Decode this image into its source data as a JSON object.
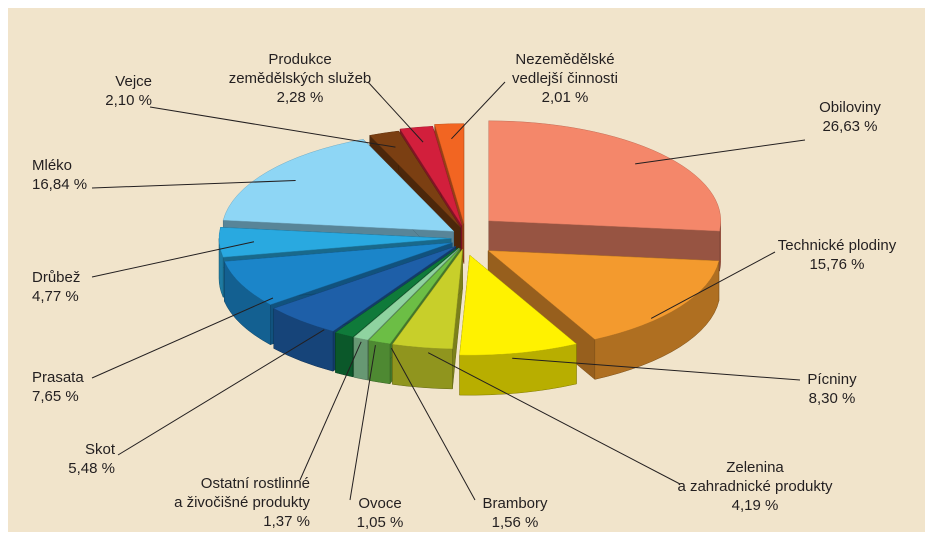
{
  "chart_data": {
    "type": "pie",
    "categories": [
      "Obiloviny",
      "Technické plodiny",
      "Pícniny",
      "Zelenina\na zahradnické produkty",
      "Brambory",
      "Ovoce",
      "Ostatní rostlinné\na živočišné produkty",
      "Skot",
      "Prasata",
      "Drůbež",
      "Mléko",
      "Vejce",
      "Produkce\nzemědělských služeb",
      "Nezemědělské\nvedlejší činnosti"
    ],
    "values": [
      26.63,
      15.76,
      8.3,
      4.19,
      1.56,
      1.05,
      1.37,
      5.48,
      7.65,
      4.77,
      16.84,
      2.1,
      2.28,
      2.01
    ],
    "value_labels": [
      "26,63 %",
      "15,76 %",
      "8,30 %",
      "4,19 %",
      "1,56 %",
      "1,05 %",
      "1,37 %",
      "5,48 %",
      "7,65 %",
      "4,77 %",
      "16,84 %",
      "2,10 %",
      "2,28 %",
      "2,01 %"
    ],
    "colors": [
      "#f4876a",
      "#f39a2e",
      "#fff200",
      "#c8cf2a",
      "#6cbe45",
      "#8fd3a0",
      "#0f7a3a",
      "#1e5fa8",
      "#1b85c9",
      "#29a9e0",
      "#8ed6f5",
      "#7b3f12",
      "#d21f3c",
      "#f26522"
    ]
  }
}
